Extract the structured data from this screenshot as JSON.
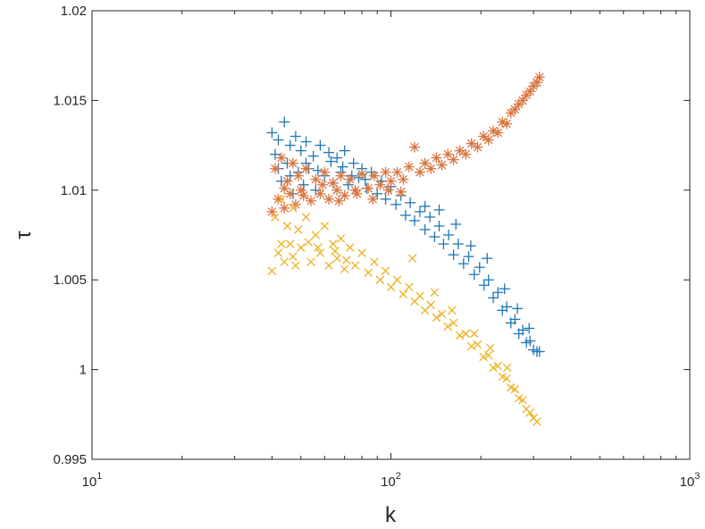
{
  "chart_data": {
    "type": "scatter",
    "xlabel": "k",
    "ylabel": "τ",
    "xscale": "log",
    "xlim": [
      10,
      1000
    ],
    "ylim": [
      0.995,
      1.02
    ],
    "grid": false,
    "x_ticks": [
      {
        "value": 10,
        "base": "10",
        "exp": "1"
      },
      {
        "value": 100,
        "base": "10",
        "exp": "2"
      },
      {
        "value": 1000,
        "base": "10",
        "exp": "3"
      }
    ],
    "y_ticks": [
      {
        "value": 0.995,
        "label": "0.995"
      },
      {
        "value": 1.0,
        "label": "1"
      },
      {
        "value": 1.005,
        "label": "1.005"
      },
      {
        "value": 1.01,
        "label": "1.01"
      },
      {
        "value": 1.015,
        "label": "1.015"
      },
      {
        "value": 1.02,
        "label": "1.02"
      }
    ],
    "series": [
      {
        "marker": "plus",
        "color": "#1f77b4",
        "points": [
          [
            40,
            1.0132
          ],
          [
            41,
            1.012
          ],
          [
            42,
            1.0128
          ],
          [
            43,
            1.0105
          ],
          [
            44,
            1.0138
          ],
          [
            45,
            1.0115
          ],
          [
            46,
            1.0125
          ],
          [
            47,
            1.0098
          ],
          [
            48,
            1.013
          ],
          [
            49,
            1.011
          ],
          [
            50,
            1.0122
          ],
          [
            51,
            1.0103
          ],
          [
            52,
            1.0127
          ],
          [
            53,
            1.0112
          ],
          [
            55,
            1.0119
          ],
          [
            56,
            1.01
          ],
          [
            58,
            1.0125
          ],
          [
            60,
            1.0108
          ],
          [
            62,
            1.0121
          ],
          [
            64,
            1.0104
          ],
          [
            66,
            1.0118
          ],
          [
            68,
            1.011
          ],
          [
            70,
            1.0122
          ],
          [
            72,
            1.0103
          ],
          [
            75,
            1.0115
          ],
          [
            78,
            1.0107
          ],
          [
            80,
            1.0112
          ],
          [
            83,
            1.0101
          ],
          [
            86,
            1.011
          ],
          [
            90,
            1.0098
          ],
          [
            93,
            1.0105
          ],
          [
            96,
            1.0095
          ],
          [
            100,
            1.0102
          ],
          [
            104,
            1.0092
          ],
          [
            108,
            1.0097
          ],
          [
            112,
            1.0086
          ],
          [
            116,
            1.0093
          ],
          [
            120,
            1.0083
          ],
          [
            125,
            1.0088
          ],
          [
            130,
            1.0078
          ],
          [
            135,
            1.0085
          ],
          [
            140,
            1.0074
          ],
          [
            145,
            1.008
          ],
          [
            150,
            1.007
          ],
          [
            156,
            1.0075
          ],
          [
            162,
            1.0064
          ],
          [
            168,
            1.007
          ],
          [
            175,
            1.0059
          ],
          [
            182,
            1.0063
          ],
          [
            190,
            1.0053
          ],
          [
            198,
            1.0057
          ],
          [
            205,
            1.0047
          ],
          [
            212,
            1.005
          ],
          [
            220,
            1.004
          ],
          [
            228,
            1.0043
          ],
          [
            236,
            1.0033
          ],
          [
            244,
            1.0035
          ],
          [
            252,
            1.0026
          ],
          [
            260,
            1.0028
          ],
          [
            268,
            1.002
          ],
          [
            276,
            1.0022
          ],
          [
            284,
            1.0015
          ],
          [
            292,
            1.0016
          ],
          [
            300,
            1.0011
          ],
          [
            308,
            1.001
          ],
          [
            314,
            1.001
          ],
          [
            130,
            1.0091
          ],
          [
            145,
            1.0089
          ],
          [
            165,
            1.0081
          ],
          [
            185,
            1.0069
          ],
          [
            210,
            1.0062
          ],
          [
            240,
            1.0045
          ],
          [
            265,
            1.0034
          ],
          [
            290,
            1.0023
          ],
          [
            42,
            1.0112
          ],
          [
            46,
            1.0108
          ],
          [
            52,
            1.0115
          ],
          [
            57,
            1.0111
          ],
          [
            63,
            1.0116
          ],
          [
            69,
            1.0113
          ],
          [
            74,
            1.0108
          ],
          [
            82,
            1.0106
          ]
        ]
      },
      {
        "marker": "asterisk",
        "color": "#d97540",
        "points": [
          [
            40,
            1.0088
          ],
          [
            41,
            1.0112
          ],
          [
            42,
            1.0095
          ],
          [
            43,
            1.0118
          ],
          [
            44,
            1.009
          ],
          [
            45,
            1.0105
          ],
          [
            46,
            1.0098
          ],
          [
            47,
            1.0115
          ],
          [
            48,
            1.0092
          ],
          [
            49,
            1.0108
          ],
          [
            50,
            1.01
          ],
          [
            52,
            1.0112
          ],
          [
            54,
            1.0094
          ],
          [
            56,
            1.0106
          ],
          [
            58,
            1.0098
          ],
          [
            60,
            1.011
          ],
          [
            62,
            1.0095
          ],
          [
            64,
            1.0104
          ],
          [
            66,
            1.01
          ],
          [
            68,
            1.0108
          ],
          [
            70,
            1.0097
          ],
          [
            73,
            1.0106
          ],
          [
            76,
            1.01
          ],
          [
            80,
            1.0109
          ],
          [
            84,
            1.0101
          ],
          [
            88,
            1.0108
          ],
          [
            92,
            1.0103
          ],
          [
            96,
            1.011
          ],
          [
            100,
            1.0105
          ],
          [
            105,
            1.011
          ],
          [
            110,
            1.0106
          ],
          [
            115,
            1.0113
          ],
          [
            120,
            1.0124
          ],
          [
            125,
            1.011
          ],
          [
            130,
            1.0115
          ],
          [
            136,
            1.0112
          ],
          [
            142,
            1.0118
          ],
          [
            148,
            1.0114
          ],
          [
            155,
            1.012
          ],
          [
            162,
            1.0117
          ],
          [
            170,
            1.0122
          ],
          [
            178,
            1.012
          ],
          [
            186,
            1.0126
          ],
          [
            195,
            1.0124
          ],
          [
            204,
            1.013
          ],
          [
            212,
            1.0128
          ],
          [
            220,
            1.0133
          ],
          [
            228,
            1.0132
          ],
          [
            236,
            1.0138
          ],
          [
            244,
            1.0137
          ],
          [
            252,
            1.0143
          ],
          [
            260,
            1.0145
          ],
          [
            268,
            1.0148
          ],
          [
            276,
            1.015
          ],
          [
            284,
            1.0153
          ],
          [
            292,
            1.0155
          ],
          [
            300,
            1.0158
          ],
          [
            308,
            1.016
          ],
          [
            314,
            1.0163
          ],
          [
            44,
            1.0101
          ],
          [
            51,
            1.0097
          ],
          [
            59,
            1.0103
          ],
          [
            67,
            1.0094
          ],
          [
            77,
            1.0098
          ],
          [
            87,
            1.0095
          ],
          [
            98,
            1.01
          ],
          [
            108,
            1.0099
          ]
        ]
      },
      {
        "marker": "cross",
        "color": "#edb120",
        "points": [
          [
            40,
            1.0055
          ],
          [
            41,
            1.0085
          ],
          [
            42,
            1.0065
          ],
          [
            43,
            1.0095
          ],
          [
            44,
            1.006
          ],
          [
            45,
            1.008
          ],
          [
            46,
            1.007
          ],
          [
            47,
            1.009
          ],
          [
            48,
            1.0058
          ],
          [
            49,
            1.0078
          ],
          [
            50,
            1.0068
          ],
          [
            52,
            1.0085
          ],
          [
            54,
            1.006
          ],
          [
            56,
            1.0075
          ],
          [
            58,
            1.0065
          ],
          [
            60,
            1.008
          ],
          [
            62,
            1.0058
          ],
          [
            64,
            1.007
          ],
          [
            66,
            1.0062
          ],
          [
            68,
            1.0073
          ],
          [
            70,
            1.0056
          ],
          [
            73,
            1.0068
          ],
          [
            76,
            1.0058
          ],
          [
            80,
            1.0065
          ],
          [
            84,
            1.0054
          ],
          [
            88,
            1.006
          ],
          [
            92,
            1.005
          ],
          [
            96,
            1.0055
          ],
          [
            100,
            1.0046
          ],
          [
            105,
            1.005
          ],
          [
            110,
            1.0042
          ],
          [
            115,
            1.0046
          ],
          [
            120,
            1.0038
          ],
          [
            125,
            1.0041
          ],
          [
            130,
            1.0033
          ],
          [
            136,
            1.0036
          ],
          [
            142,
            1.0029
          ],
          [
            148,
            1.0031
          ],
          [
            155,
            1.0024
          ],
          [
            162,
            1.0026
          ],
          [
            170,
            1.0019
          ],
          [
            178,
            1.002
          ],
          [
            186,
            1.0013
          ],
          [
            195,
            1.0014
          ],
          [
            204,
            1.0007
          ],
          [
            212,
            1.0008
          ],
          [
            220,
            1.0001
          ],
          [
            228,
            1.0002
          ],
          [
            236,
            0.9996
          ],
          [
            244,
            0.9995
          ],
          [
            252,
            0.999
          ],
          [
            260,
            0.9989
          ],
          [
            268,
            0.9984
          ],
          [
            276,
            0.9983
          ],
          [
            284,
            0.9978
          ],
          [
            292,
            0.9976
          ],
          [
            300,
            0.9973
          ],
          [
            308,
            0.9971
          ],
          [
            118,
            1.0062
          ],
          [
            140,
            1.0043
          ],
          [
            160,
            1.0033
          ],
          [
            190,
            1.002
          ],
          [
            215,
            1.0012
          ],
          [
            245,
            1.0001
          ],
          [
            43,
            1.007
          ],
          [
            47,
            1.0063
          ],
          [
            53,
            1.0071
          ],
          [
            57,
            1.0068
          ],
          [
            65,
            1.0066
          ],
          [
            71,
            1.0061
          ]
        ]
      }
    ]
  }
}
